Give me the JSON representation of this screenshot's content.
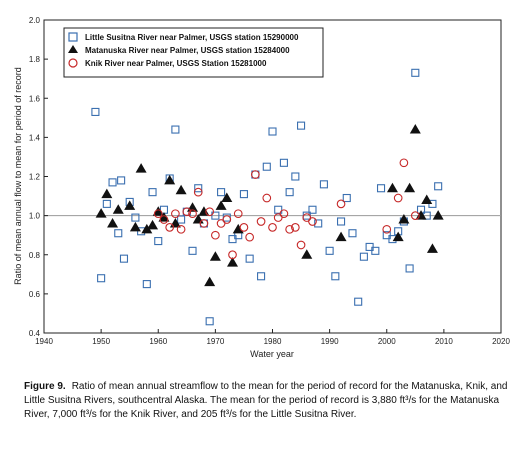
{
  "chart_data": {
    "type": "scatter",
    "xlabel": "Water year",
    "ylabel": "Ratio of mean annual flow to mean for period of record",
    "xlim": [
      1940,
      2020
    ],
    "ylim": [
      0.4,
      2.0
    ],
    "xticks": [
      "1940",
      "1950",
      "1960",
      "1970",
      "1980",
      "1990",
      "2000",
      "2010",
      "2020"
    ],
    "yticks": [
      "0.4",
      "0.6",
      "0.8",
      "1.0",
      "1.2",
      "1.4",
      "1.6",
      "1.8",
      "2.0"
    ],
    "reference_line": 1.0,
    "grid": false,
    "legend_position": "top-left",
    "series": [
      {
        "name": "Little Susitna River near Palmer, USGS station 15290000",
        "marker": "square",
        "color": "#3a6fb0",
        "points": [
          [
            1949,
            1.53
          ],
          [
            1950,
            0.68
          ],
          [
            1951,
            1.06
          ],
          [
            1952,
            1.17
          ],
          [
            1953,
            0.91
          ],
          [
            1953.5,
            1.18
          ],
          [
            1954,
            0.78
          ],
          [
            1955,
            1.07
          ],
          [
            1956,
            0.99
          ],
          [
            1957,
            0.92
          ],
          [
            1958,
            0.65
          ],
          [
            1959,
            1.12
          ],
          [
            1960,
            0.87
          ],
          [
            1961,
            1.03
          ],
          [
            1962,
            1.19
          ],
          [
            1963,
            1.44
          ],
          [
            1964,
            0.98
          ],
          [
            1965,
            1.02
          ],
          [
            1966,
            0.82
          ],
          [
            1967,
            1.14
          ],
          [
            1968,
            0.96
          ],
          [
            1969,
            0.46
          ],
          [
            1970,
            1.0
          ],
          [
            1971,
            1.12
          ],
          [
            1972,
            0.99
          ],
          [
            1973,
            0.88
          ],
          [
            1974,
            0.9
          ],
          [
            1975,
            1.11
          ],
          [
            1976,
            0.78
          ],
          [
            1977,
            1.21
          ],
          [
            1978,
            0.69
          ],
          [
            1979,
            1.25
          ],
          [
            1980,
            1.43
          ],
          [
            1981,
            1.03
          ],
          [
            1982,
            1.27
          ],
          [
            1983,
            1.12
          ],
          [
            1984,
            1.2
          ],
          [
            1985,
            1.46
          ],
          [
            1986,
            1.0
          ],
          [
            1987,
            1.03
          ],
          [
            1988,
            0.96
          ],
          [
            1989,
            1.16
          ],
          [
            1990,
            0.82
          ],
          [
            1991,
            0.69
          ],
          [
            1992,
            0.97
          ],
          [
            1993,
            1.09
          ],
          [
            1994,
            0.91
          ],
          [
            1995,
            0.56
          ],
          [
            1996,
            0.79
          ],
          [
            1997,
            0.84
          ],
          [
            1998,
            0.82
          ],
          [
            1999,
            1.14
          ],
          [
            2000,
            0.9
          ],
          [
            2001,
            0.88
          ],
          [
            2002,
            0.92
          ],
          [
            2003,
            0.97
          ],
          [
            2004,
            0.73
          ],
          [
            2005,
            1.73
          ],
          [
            2006,
            1.03
          ],
          [
            2007,
            1.0
          ],
          [
            2008,
            1.06
          ],
          [
            2009,
            1.15
          ]
        ]
      },
      {
        "name": "Matanuska River near Palmer, USGS station 15284000",
        "marker": "triangle",
        "color": "#111111",
        "points": [
          [
            1950,
            1.01
          ],
          [
            1951,
            1.11
          ],
          [
            1952,
            0.96
          ],
          [
            1953,
            1.03
          ],
          [
            1955,
            1.05
          ],
          [
            1956,
            0.94
          ],
          [
            1957,
            1.24
          ],
          [
            1958,
            0.93
          ],
          [
            1959,
            0.95
          ],
          [
            1960,
            1.02
          ],
          [
            1961,
            0.99
          ],
          [
            1962,
            1.18
          ],
          [
            1963,
            0.96
          ],
          [
            1964,
            1.13
          ],
          [
            1966,
            1.04
          ],
          [
            1967,
            0.98
          ],
          [
            1968,
            1.02
          ],
          [
            1969,
            0.66
          ],
          [
            1970,
            0.79
          ],
          [
            1971,
            1.05
          ],
          [
            1972,
            1.09
          ],
          [
            1973,
            0.76
          ],
          [
            1974,
            0.93
          ],
          [
            1986,
            0.8
          ],
          [
            1992,
            0.89
          ],
          [
            2001,
            1.14
          ],
          [
            2002,
            0.89
          ],
          [
            2003,
            0.98
          ],
          [
            2004,
            1.14
          ],
          [
            2005,
            1.44
          ],
          [
            2006,
            1.0
          ],
          [
            2007,
            1.08
          ],
          [
            2008,
            0.83
          ],
          [
            2009,
            1.0
          ]
        ]
      },
      {
        "name": "Knik River near Palmer, USGS Station 15281000",
        "marker": "circle",
        "color": "#c62828",
        "points": [
          [
            1960,
            1.01
          ],
          [
            1961,
            0.98
          ],
          [
            1962,
            0.94
          ],
          [
            1963,
            1.01
          ],
          [
            1964,
            0.93
          ],
          [
            1965,
            1.02
          ],
          [
            1966,
            1.01
          ],
          [
            1967,
            1.12
          ],
          [
            1968,
            0.96
          ],
          [
            1969,
            1.02
          ],
          [
            1970,
            0.9
          ],
          [
            1971,
            0.96
          ],
          [
            1972,
            0.98
          ],
          [
            1973,
            0.8
          ],
          [
            1974,
            1.01
          ],
          [
            1975,
            0.94
          ],
          [
            1976,
            0.89
          ],
          [
            1977,
            1.21
          ],
          [
            1978,
            0.97
          ],
          [
            1979,
            1.09
          ],
          [
            1980,
            0.94
          ],
          [
            1981,
            0.99
          ],
          [
            1982,
            1.01
          ],
          [
            1983,
            0.93
          ],
          [
            1984,
            0.94
          ],
          [
            1985,
            0.85
          ],
          [
            1986,
            0.99
          ],
          [
            1987,
            0.97
          ],
          [
            1992,
            1.06
          ],
          [
            2000,
            0.93
          ],
          [
            2002,
            1.09
          ],
          [
            2003,
            1.27
          ],
          [
            2005,
            1.0
          ]
        ]
      }
    ]
  },
  "caption": {
    "label": "Figure 9.",
    "text": "Ratio of mean annual streamflow to the mean for the period of record for the Matanuska, Knik, and Little Susitna Rivers, southcentral Alaska. The mean for the period of record is 3,880 ft³/s for the Matanuska River, 7,000 ft³/s for the Knik River, and 205 ft³/s for the Little Susitna River."
  }
}
